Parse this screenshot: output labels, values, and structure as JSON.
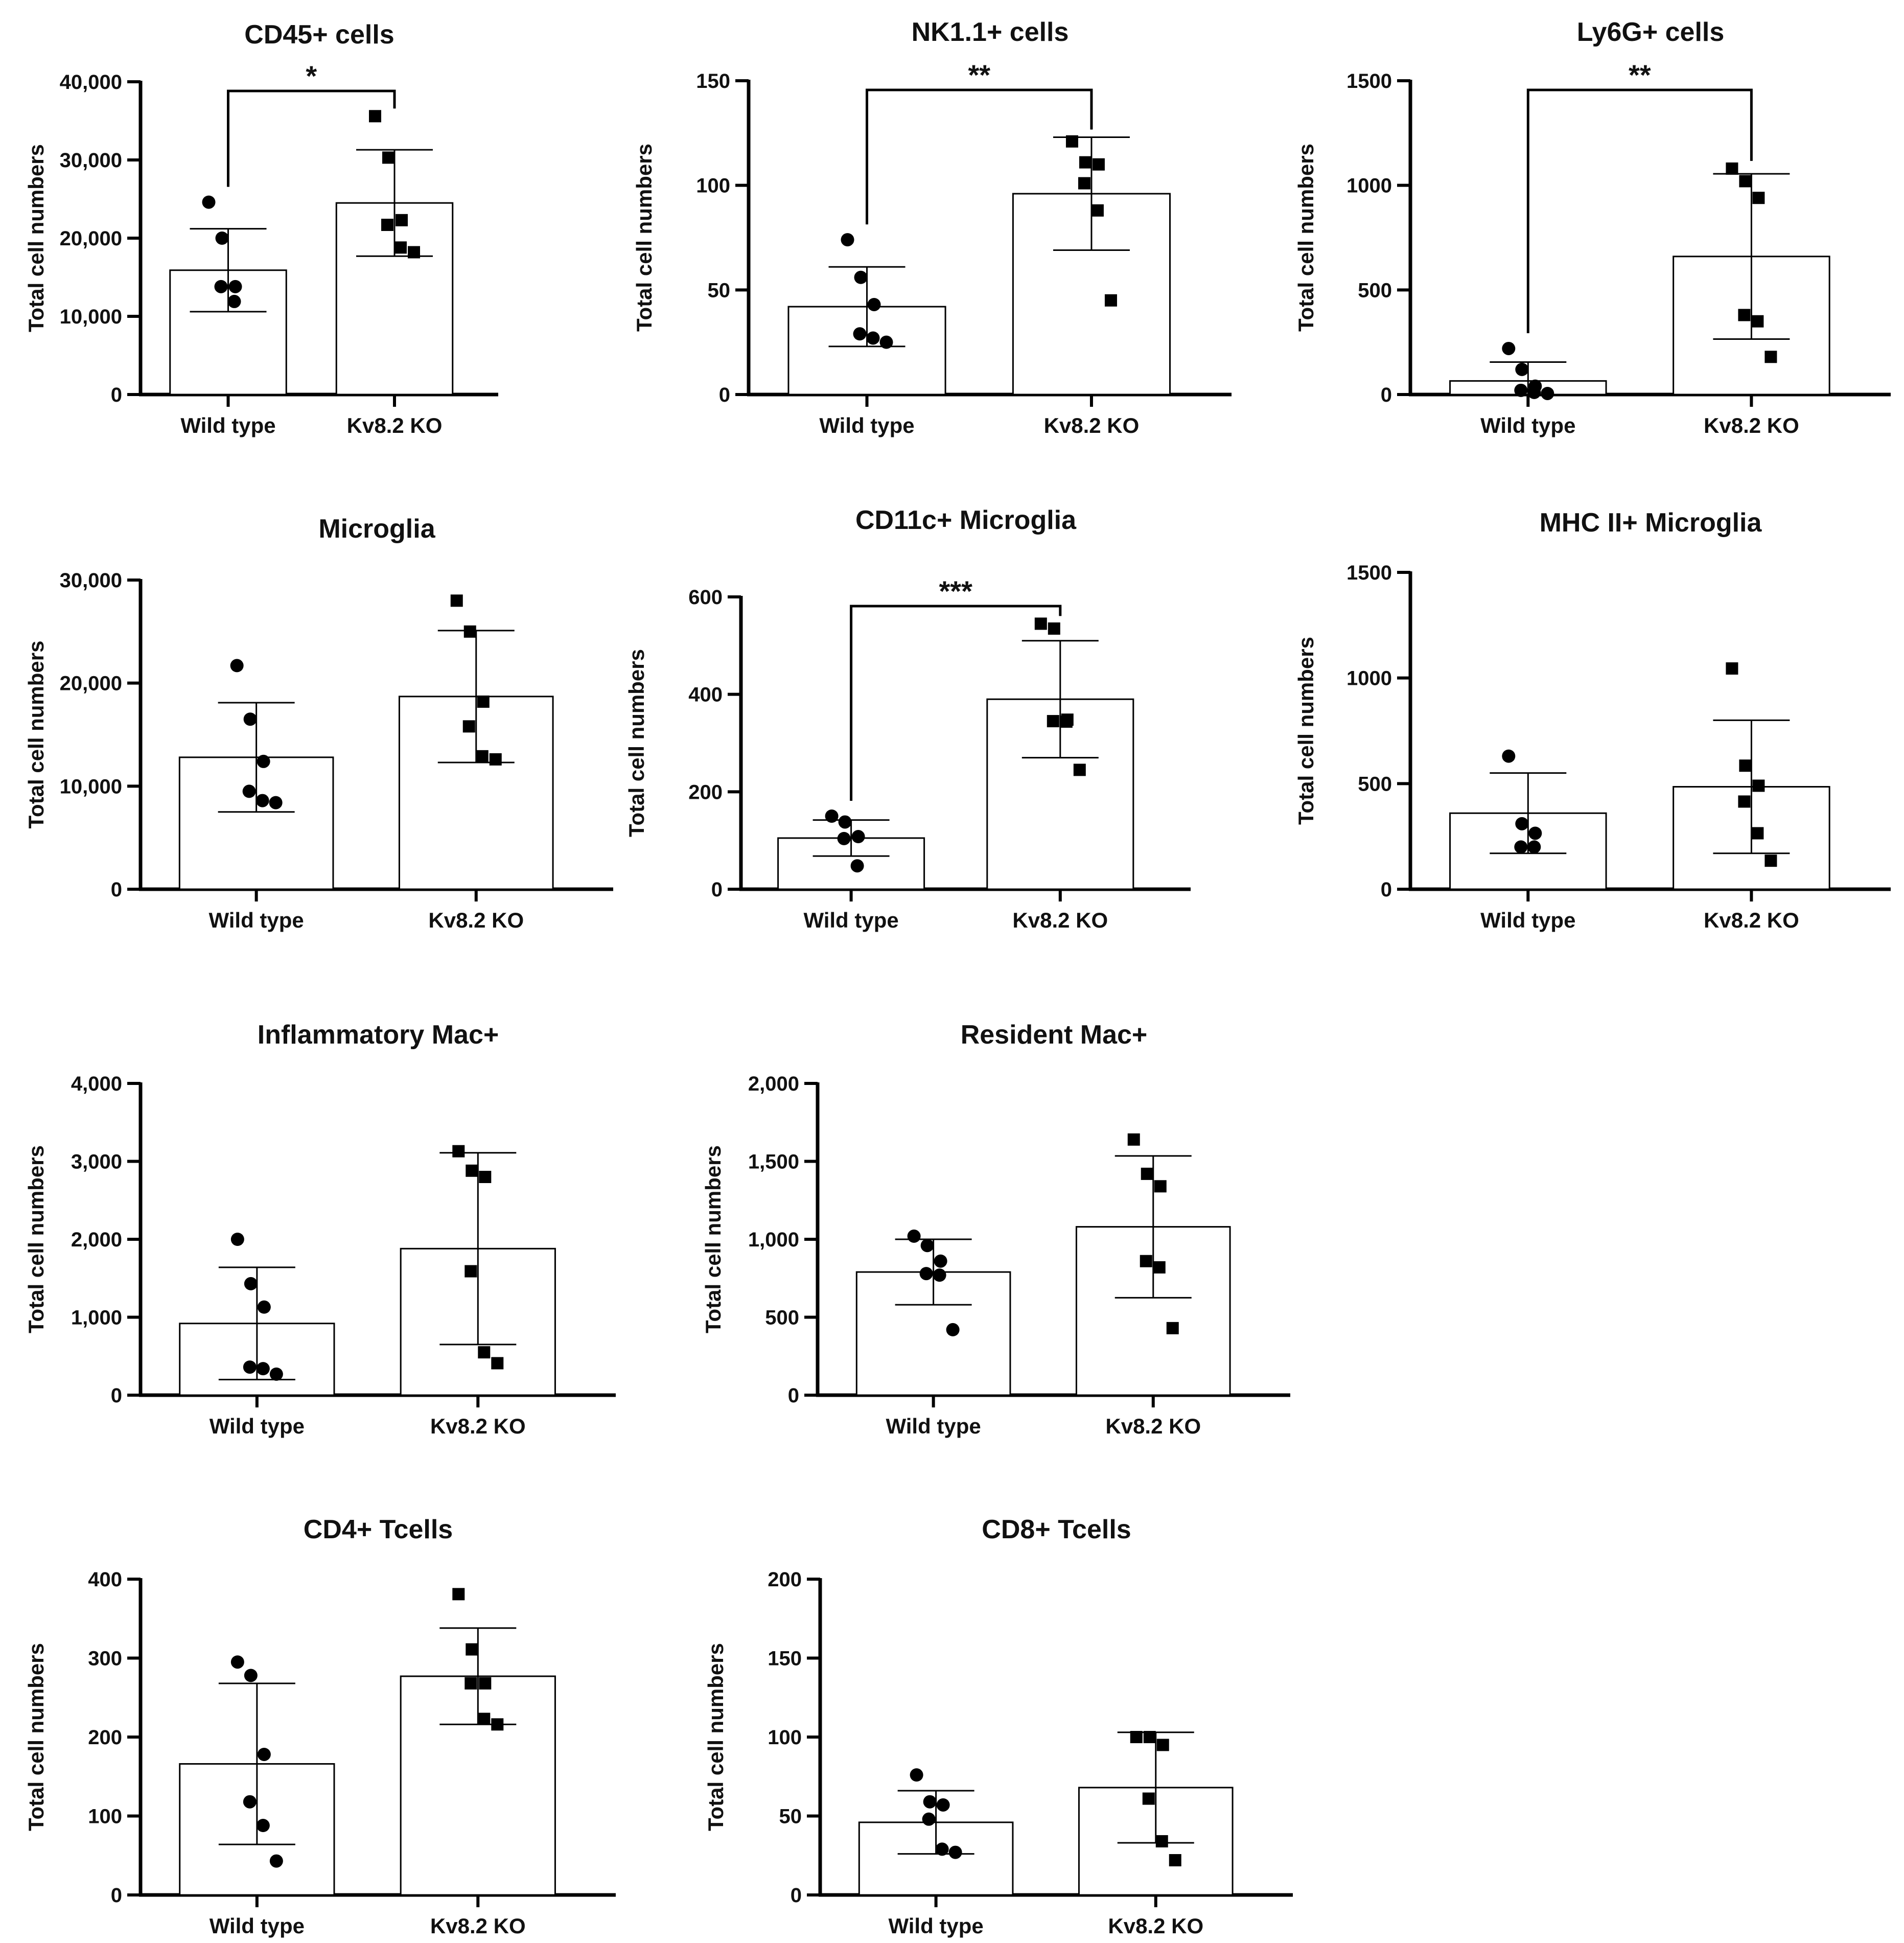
{
  "figure": {
    "marker_color": "#000000",
    "bar_fill": "#ffffff",
    "line_color": "#000000"
  },
  "chart_data": [
    {
      "type": "bar",
      "title": "CD45+ cells",
      "ylabel": "Total cell numbers",
      "xlabel": "",
      "categories": [
        "Wild type",
        "Kv8.2 KO"
      ],
      "ylim": [
        0,
        40000
      ],
      "yticks": [
        0,
        10000,
        20000,
        30000,
        40000
      ],
      "yticklabels": [
        "0",
        "10,000",
        "20,000",
        "30,000",
        "40,000"
      ],
      "series": [
        {
          "name": "Wild type",
          "marker": "circle",
          "mean": 15900,
          "sd": 5300,
          "points": [
            24600,
            20000,
            13800,
            13800,
            11900
          ]
        },
        {
          "name": "Kv8.2 KO",
          "marker": "square",
          "mean": 24500,
          "sd": 6800,
          "points": [
            35600,
            30300,
            22300,
            21700,
            18800,
            18200
          ]
        }
      ],
      "significance": {
        "label": "*",
        "between": [
          0,
          1
        ]
      }
    },
    {
      "type": "bar",
      "title": "NK1.1+ cells",
      "ylabel": "Total cell numbers",
      "xlabel": "",
      "categories": [
        "Wild type",
        "Kv8.2 KO"
      ],
      "ylim": [
        0,
        150
      ],
      "yticks": [
        0,
        50,
        100,
        150
      ],
      "yticklabels": [
        "0",
        "50",
        "100",
        "150"
      ],
      "series": [
        {
          "name": "Wild type",
          "marker": "circle",
          "mean": 42,
          "sd": 19,
          "points": [
            74,
            56,
            43,
            29,
            27,
            25
          ]
        },
        {
          "name": "Kv8.2 KO",
          "marker": "square",
          "mean": 96,
          "sd": 27,
          "points": [
            121,
            111,
            110,
            101,
            88,
            45
          ]
        }
      ],
      "significance": {
        "label": "**",
        "between": [
          0,
          1
        ]
      }
    },
    {
      "type": "bar",
      "title": "Ly6G+ cells",
      "ylabel": "Total cell numbers",
      "xlabel": "",
      "categories": [
        "Wild type",
        "Kv8.2 KO"
      ],
      "ylim": [
        0,
        1500
      ],
      "yticks": [
        0,
        500,
        1000,
        1500
      ],
      "yticklabels": [
        "0",
        "500",
        "1000",
        "1500"
      ],
      "series": [
        {
          "name": "Wild type",
          "marker": "circle",
          "mean": 65,
          "sd": 90,
          "points": [
            220,
            120,
            40,
            20,
            10,
            5
          ]
        },
        {
          "name": "Kv8.2 KO",
          "marker": "square",
          "mean": 660,
          "sd": 395,
          "points": [
            1080,
            1020,
            940,
            380,
            350,
            180
          ]
        }
      ],
      "significance": {
        "label": "**",
        "between": [
          0,
          1
        ]
      }
    },
    {
      "type": "bar",
      "title": "Microglia",
      "ylabel": "Total cell numbers",
      "xlabel": "",
      "categories": [
        "Wild type",
        "Kv8.2 KO"
      ],
      "ylim": [
        0,
        30000
      ],
      "yticks": [
        0,
        10000,
        20000,
        30000
      ],
      "yticklabels": [
        "0",
        "10,000",
        "20,000",
        "30,000"
      ],
      "series": [
        {
          "name": "Wild type",
          "marker": "circle",
          "mean": 12800,
          "sd": 5300,
          "points": [
            21700,
            16500,
            12400,
            9500,
            8600,
            8400
          ]
        },
        {
          "name": "Kv8.2 KO",
          "marker": "square",
          "mean": 18700,
          "sd": 6400,
          "points": [
            28000,
            25000,
            18200,
            15800,
            12900,
            12600
          ]
        }
      ],
      "significance": null
    },
    {
      "type": "bar",
      "title": "CD11c+ Microglia",
      "ylabel": "Total cell numbers",
      "xlabel": "",
      "categories": [
        "Wild type",
        "Kv8.2 KO"
      ],
      "ylim": [
        0,
        600
      ],
      "yticks": [
        0,
        200,
        400,
        600
      ],
      "yticklabels": [
        "0",
        "200",
        "400",
        "600"
      ],
      "series": [
        {
          "name": "Wild type",
          "marker": "circle",
          "mean": 105,
          "sd": 37,
          "points": [
            150,
            138,
            108,
            104,
            48
          ]
        },
        {
          "name": "Kv8.2 KO",
          "marker": "square",
          "mean": 390,
          "sd": 120,
          "points": [
            545,
            535,
            348,
            345,
            344,
            245
          ]
        }
      ],
      "significance": {
        "label": "***",
        "between": [
          0,
          1
        ]
      }
    },
    {
      "type": "bar",
      "title": "MHC II+ Microglia",
      "ylabel": "Total cell numbers",
      "xlabel": "",
      "categories": [
        "Wild type",
        "Kv8.2 KO"
      ],
      "ylim": [
        0,
        1500
      ],
      "yticks": [
        0,
        500,
        1000,
        1500
      ],
      "yticklabels": [
        "0",
        "500",
        "1000",
        "1500"
      ],
      "series": [
        {
          "name": "Wild type",
          "marker": "circle",
          "mean": 360,
          "sd": 190,
          "points": [
            630,
            310,
            265,
            200,
            200
          ]
        },
        {
          "name": "Kv8.2 KO",
          "marker": "square",
          "mean": 485,
          "sd": 315,
          "points": [
            1045,
            585,
            490,
            415,
            265,
            135
          ]
        }
      ],
      "significance": null
    },
    {
      "type": "bar",
      "title": "Inflammatory Mac+",
      "ylabel": "Total cell numbers",
      "xlabel": "",
      "categories": [
        "Wild type",
        "Kv8.2 KO"
      ],
      "ylim": [
        0,
        4000
      ],
      "yticks": [
        0,
        1000,
        2000,
        3000,
        4000
      ],
      "yticklabels": [
        "0",
        "1,000",
        "2,000",
        "3,000",
        "4,000"
      ],
      "series": [
        {
          "name": "Wild type",
          "marker": "circle",
          "mean": 920,
          "sd": 720,
          "points": [
            2000,
            1430,
            1130,
            360,
            340,
            270
          ]
        },
        {
          "name": "Kv8.2 KO",
          "marker": "square",
          "mean": 1880,
          "sd": 1230,
          "points": [
            3130,
            2880,
            2800,
            1590,
            550,
            410
          ]
        }
      ],
      "significance": null
    },
    {
      "type": "bar",
      "title": "Resident Mac+",
      "ylabel": "Total cell numbers",
      "xlabel": "",
      "categories": [
        "Wild type",
        "Kv8.2 KO"
      ],
      "ylim": [
        0,
        2000
      ],
      "yticks": [
        0,
        500,
        1000,
        1500,
        2000
      ],
      "yticklabels": [
        "0",
        "500",
        "1,000",
        "1,500",
        "2,000"
      ],
      "series": [
        {
          "name": "Wild type",
          "marker": "circle",
          "mean": 790,
          "sd": 210,
          "points": [
            1020,
            960,
            860,
            780,
            770,
            420
          ]
        },
        {
          "name": "Kv8.2 KO",
          "marker": "square",
          "mean": 1080,
          "sd": 455,
          "points": [
            1640,
            1420,
            1340,
            860,
            820,
            430
          ]
        }
      ],
      "significance": null
    },
    {
      "type": "bar",
      "title": "CD4+ Tcells",
      "ylabel": "Total cell numbers",
      "xlabel": "",
      "categories": [
        "Wild type",
        "Kv8.2 KO"
      ],
      "ylim": [
        0,
        400
      ],
      "yticks": [
        0,
        100,
        200,
        300,
        400
      ],
      "yticklabels": [
        "0",
        "100",
        "200",
        "300",
        "400"
      ],
      "series": [
        {
          "name": "Wild type",
          "marker": "circle",
          "mean": 166,
          "sd": 102,
          "points": [
            295,
            278,
            178,
            118,
            88,
            43
          ]
        },
        {
          "name": "Kv8.2 KO",
          "marker": "square",
          "mean": 277,
          "sd": 61,
          "points": [
            381,
            311,
            268,
            268,
            223,
            216
          ]
        }
      ],
      "significance": null
    },
    {
      "type": "bar",
      "title": "CD8+ Tcells",
      "ylabel": "Total cell numbers",
      "xlabel": "",
      "categories": [
        "Wild type",
        "Kv8.2 KO"
      ],
      "ylim": [
        0,
        200
      ],
      "yticks": [
        0,
        50,
        100,
        150,
        200
      ],
      "yticklabels": [
        "0",
        "50",
        "100",
        "150",
        "200"
      ],
      "series": [
        {
          "name": "Wild type",
          "marker": "circle",
          "mean": 46,
          "sd": 20,
          "points": [
            76,
            59,
            57,
            48,
            29,
            27
          ]
        },
        {
          "name": "Kv8.2 KO",
          "marker": "square",
          "mean": 68,
          "sd": 35,
          "points": [
            100,
            100,
            95,
            61,
            34,
            22
          ]
        }
      ],
      "significance": null
    }
  ]
}
